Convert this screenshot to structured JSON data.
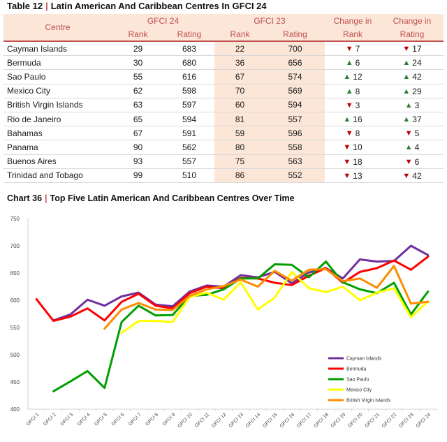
{
  "table": {
    "number": "Table  12",
    "title": "Latin American And Caribbean Centres In GFCI 24",
    "headers": {
      "centre": "Centre",
      "gfci24": "GFCI 24",
      "gfci23": "GFCI 23",
      "change_rank": "Change in Rank",
      "change_rating": "Change in Rating",
      "rank": "Rank",
      "rating": "Rating"
    },
    "rows": [
      {
        "centre": "Cayman Islands",
        "r24": "29",
        "s24": "683",
        "r23": "22",
        "s23": "700",
        "dr": "7",
        "dr_dir": "down",
        "ds": "17",
        "ds_dir": "down"
      },
      {
        "centre": "Bermuda",
        "r24": "30",
        "s24": "680",
        "r23": "36",
        "s23": "656",
        "dr": "6",
        "dr_dir": "up",
        "ds": "24",
        "ds_dir": "up"
      },
      {
        "centre": "Sao Paulo",
        "r24": "55",
        "s24": "616",
        "r23": "67",
        "s23": "574",
        "dr": "12",
        "dr_dir": "up",
        "ds": "42",
        "ds_dir": "up"
      },
      {
        "centre": "Mexico City",
        "r24": "62",
        "s24": "598",
        "r23": "70",
        "s23": "569",
        "dr": "8",
        "dr_dir": "up",
        "ds": "29",
        "ds_dir": "up"
      },
      {
        "centre": "British Virgin Islands",
        "r24": "63",
        "s24": "597",
        "r23": "60",
        "s23": "594",
        "dr": "3",
        "dr_dir": "down",
        "ds": "3",
        "ds_dir": "up"
      },
      {
        "centre": "Rio de Janeiro",
        "r24": "65",
        "s24": "594",
        "r23": "81",
        "s23": "557",
        "dr": "16",
        "dr_dir": "up",
        "ds": "37",
        "ds_dir": "up"
      },
      {
        "centre": "Bahamas",
        "r24": "67",
        "s24": "591",
        "r23": "59",
        "s23": "596",
        "dr": "8",
        "dr_dir": "down",
        "ds": "5",
        "ds_dir": "down"
      },
      {
        "centre": "Panama",
        "r24": "90",
        "s24": "562",
        "r23": "80",
        "s23": "558",
        "dr": "10",
        "dr_dir": "down",
        "ds": "4",
        "ds_dir": "up"
      },
      {
        "centre": "Buenos Aires",
        "r24": "93",
        "s24": "557",
        "r23": "75",
        "s23": "563",
        "dr": "18",
        "dr_dir": "down",
        "ds": "6",
        "ds_dir": "down"
      },
      {
        "centre": "Trinidad and Tobago",
        "r24": "99",
        "s24": "510",
        "r23": "86",
        "s23": "552",
        "dr": "13",
        "dr_dir": "down",
        "ds": "42",
        "ds_dir": "down"
      }
    ]
  },
  "chart_heading": {
    "number": "Chart 36",
    "title": "Top Five Latin American And Caribbean Centres Over Time"
  },
  "chart_data": {
    "type": "line",
    "title": "Top Five Latin American And Caribbean Centres Over Time",
    "x": [
      "GFCI 1",
      "GFCI 2",
      "GFCI 3",
      "GFCI 4",
      "GFCI 5",
      "GFCI 6",
      "GFCI 7",
      "GFCI 8",
      "GFCI 9",
      "GFCI 10",
      "GFCI 11",
      "GFCI 12",
      "GFCI 13",
      "GFCI 14",
      "GFCI 15",
      "GFCI 16",
      "GFCI 17",
      "GFCI 18",
      "GFCI 19",
      "GFCI 20",
      "GFCI 21",
      "GFCI 22",
      "GFCI 23",
      "GFCI 24"
    ],
    "ylim": [
      400,
      750
    ],
    "yticks": [
      400,
      450,
      500,
      550,
      600,
      650,
      700,
      750
    ],
    "grid": false,
    "legend": "bottom-right",
    "series": [
      {
        "name": "Cayman Islands",
        "color": "#7030a0",
        "values": [
          null,
          563,
          574,
          601,
          590,
          607,
          614,
          592,
          589,
          616,
          627,
          625,
          646,
          642,
          652,
          631,
          651,
          659,
          640,
          675,
          671,
          672,
          700,
          683
        ]
      },
      {
        "name": "Bermuda",
        "color": "#ff0000",
        "values": [
          602,
          562,
          570,
          585,
          563,
          597,
          612,
          590,
          585,
          613,
          625,
          622,
          641,
          640,
          632,
          628,
          645,
          659,
          632,
          652,
          659,
          673,
          656,
          680
        ]
      },
      {
        "name": "Sao Paulo",
        "color": "#00a000",
        "values": [
          null,
          433,
          451,
          470,
          439,
          560,
          590,
          572,
          573,
          608,
          610,
          620,
          640,
          640,
          666,
          665,
          642,
          671,
          633,
          620,
          613,
          632,
          574,
          616
        ]
      },
      {
        "name": "Mexico City",
        "color": "#ffff00",
        "values": [
          null,
          null,
          null,
          null,
          null,
          540,
          562,
          562,
          560,
          606,
          614,
          601,
          633,
          583,
          605,
          652,
          622,
          615,
          625,
          600,
          614,
          622,
          569,
          598
        ]
      },
      {
        "name": "British Virgin Islands",
        "color": "#ff8c00",
        "values": [
          null,
          null,
          null,
          null,
          548,
          583,
          595,
          583,
          582,
          608,
          620,
          626,
          638,
          625,
          654,
          636,
          656,
          657,
          635,
          640,
          623,
          663,
          594,
          597
        ]
      }
    ]
  }
}
